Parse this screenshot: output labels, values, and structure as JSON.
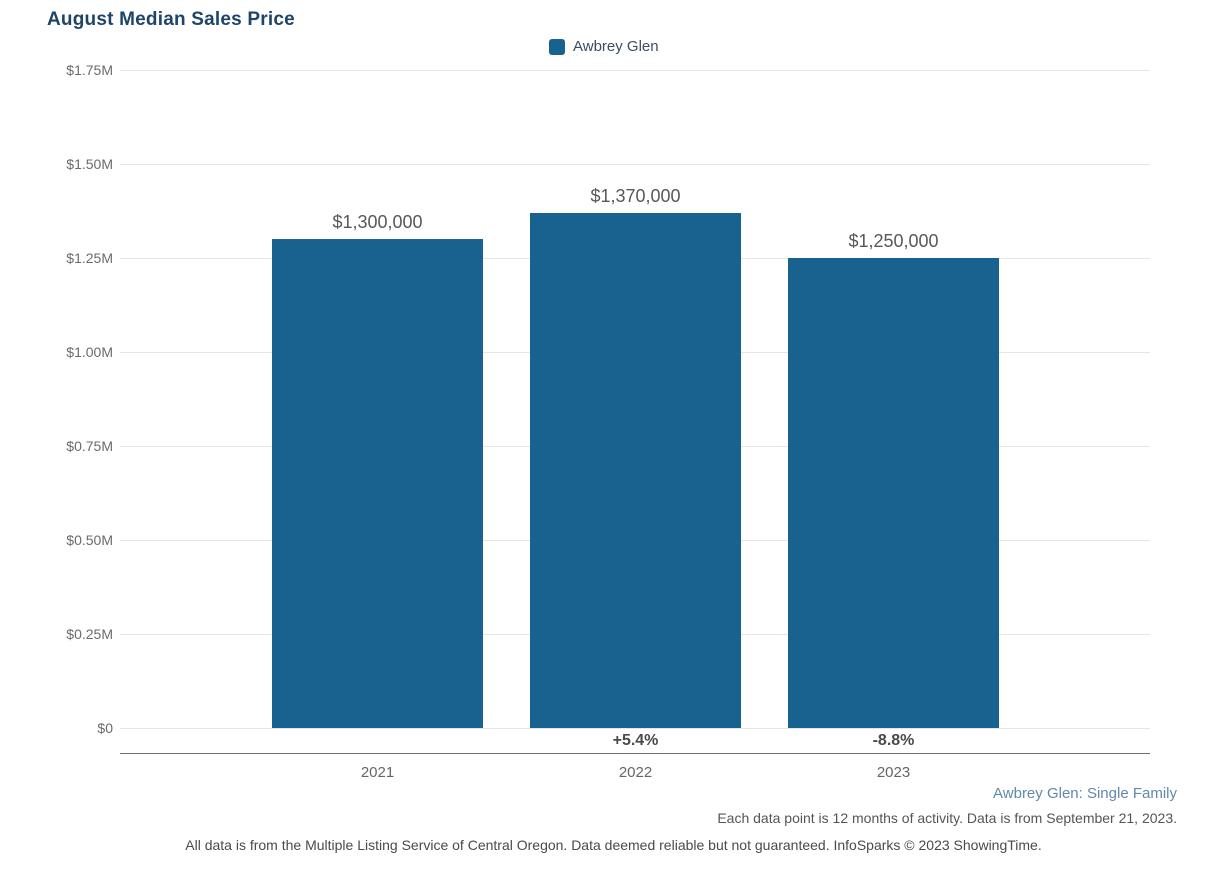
{
  "chart_data": {
    "type": "bar",
    "title": "August Median Sales Price",
    "legend": [
      {
        "label": "Awbrey Glen",
        "color": "#17628f"
      }
    ],
    "categories": [
      "2021",
      "2022",
      "2023"
    ],
    "series": [
      {
        "name": "Awbrey Glen",
        "values": [
          1300000,
          1370000,
          1250000
        ],
        "value_labels": [
          "$1,300,000",
          "$1,370,000",
          "$1,250,000"
        ],
        "pct_change_labels": [
          "",
          "+5.4%",
          "-8.8%"
        ]
      }
    ],
    "y_axis": {
      "tick_labels": [
        "$0",
        "$0.25M",
        "$0.50M",
        "$0.75M",
        "$1.00M",
        "$1.25M",
        "$1.50M",
        "$1.75M"
      ],
      "tick_values": [
        0,
        250000,
        500000,
        750000,
        1000000,
        1250000,
        1500000,
        1750000
      ],
      "ylim": [
        0,
        1750000
      ]
    },
    "grid": "horizontal",
    "legend_position": "top-center"
  },
  "colors": {
    "bar": "#17628f",
    "title": "#1e4569",
    "link": "#6188ae",
    "gridline": "#e5e5e5",
    "axis_line": "#707070"
  },
  "footer": {
    "series_link": "Awbrey Glen: Single Family",
    "data_note": "Each data point is 12 months of activity. Data is from September 21, 2023.",
    "disclaimer": "All data is from the Multiple Listing Service of Central Oregon. Data deemed reliable but not guaranteed. InfoSparks © 2023 ShowingTime."
  }
}
